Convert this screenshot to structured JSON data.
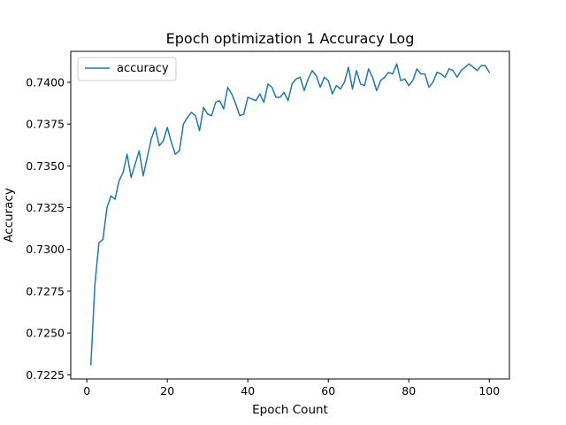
{
  "chart_data": {
    "type": "line",
    "title": "Epoch optimization 1 Accuracy Log",
    "xlabel": "Epoch Count",
    "ylabel": "Accuracy",
    "xlim": [
      -4,
      105
    ],
    "ylim": [
      0.72225,
      0.74185
    ],
    "xticks": [
      0,
      20,
      40,
      60,
      80,
      100
    ],
    "yticks": [
      0.7225,
      0.725,
      0.7275,
      0.73,
      0.7325,
      0.735,
      0.7375,
      0.74
    ],
    "ytick_labels": [
      "0.7225",
      "0.7250",
      "0.7275",
      "0.7300",
      "0.7325",
      "0.7350",
      "0.7375",
      "0.7400"
    ],
    "grid": false,
    "legend_position": "upper-left",
    "series": [
      {
        "name": "accuracy",
        "color": "#1f77b4",
        "x": [
          1,
          2,
          3,
          4,
          5,
          6,
          7,
          8,
          9,
          10,
          11,
          12,
          13,
          14,
          15,
          16,
          17,
          18,
          19,
          20,
          21,
          22,
          23,
          24,
          25,
          26,
          27,
          28,
          29,
          30,
          31,
          32,
          33,
          34,
          35,
          36,
          37,
          38,
          39,
          40,
          41,
          42,
          43,
          44,
          45,
          46,
          47,
          48,
          49,
          50,
          51,
          52,
          53,
          54,
          55,
          56,
          57,
          58,
          59,
          60,
          61,
          62,
          63,
          64,
          65,
          66,
          67,
          68,
          69,
          70,
          71,
          72,
          73,
          74,
          75,
          76,
          77,
          78,
          79,
          80,
          81,
          82,
          83,
          84,
          85,
          86,
          87,
          88,
          89,
          90,
          91,
          92,
          93,
          94,
          95,
          96,
          97,
          98,
          99,
          100
        ],
        "y": [
          0.7231,
          0.7279,
          0.7304,
          0.7306,
          0.7325,
          0.7332,
          0.733,
          0.7341,
          0.7346,
          0.7357,
          0.7343,
          0.7351,
          0.7359,
          0.7344,
          0.7355,
          0.7366,
          0.7373,
          0.7362,
          0.7365,
          0.7373,
          0.7364,
          0.7357,
          0.7359,
          0.7375,
          0.7379,
          0.7382,
          0.738,
          0.7371,
          0.7385,
          0.7381,
          0.738,
          0.7388,
          0.7389,
          0.7384,
          0.7397,
          0.7393,
          0.7387,
          0.738,
          0.7381,
          0.7391,
          0.739,
          0.7389,
          0.7393,
          0.7388,
          0.7399,
          0.7397,
          0.7391,
          0.7391,
          0.7394,
          0.7389,
          0.7399,
          0.7402,
          0.7403,
          0.7395,
          0.7402,
          0.7407,
          0.7404,
          0.7397,
          0.7403,
          0.7401,
          0.7393,
          0.7398,
          0.7396,
          0.74,
          0.7409,
          0.7396,
          0.7407,
          0.7399,
          0.7398,
          0.7408,
          0.7403,
          0.7395,
          0.7401,
          0.7403,
          0.7406,
          0.7405,
          0.7411,
          0.7401,
          0.7402,
          0.7398,
          0.7401,
          0.7408,
          0.7405,
          0.7405,
          0.7397,
          0.74,
          0.7406,
          0.7405,
          0.7403,
          0.7408,
          0.7407,
          0.7403,
          0.7407,
          0.7409,
          0.7411,
          0.7409,
          0.7407,
          0.741,
          0.741,
          0.7406
        ]
      }
    ]
  }
}
